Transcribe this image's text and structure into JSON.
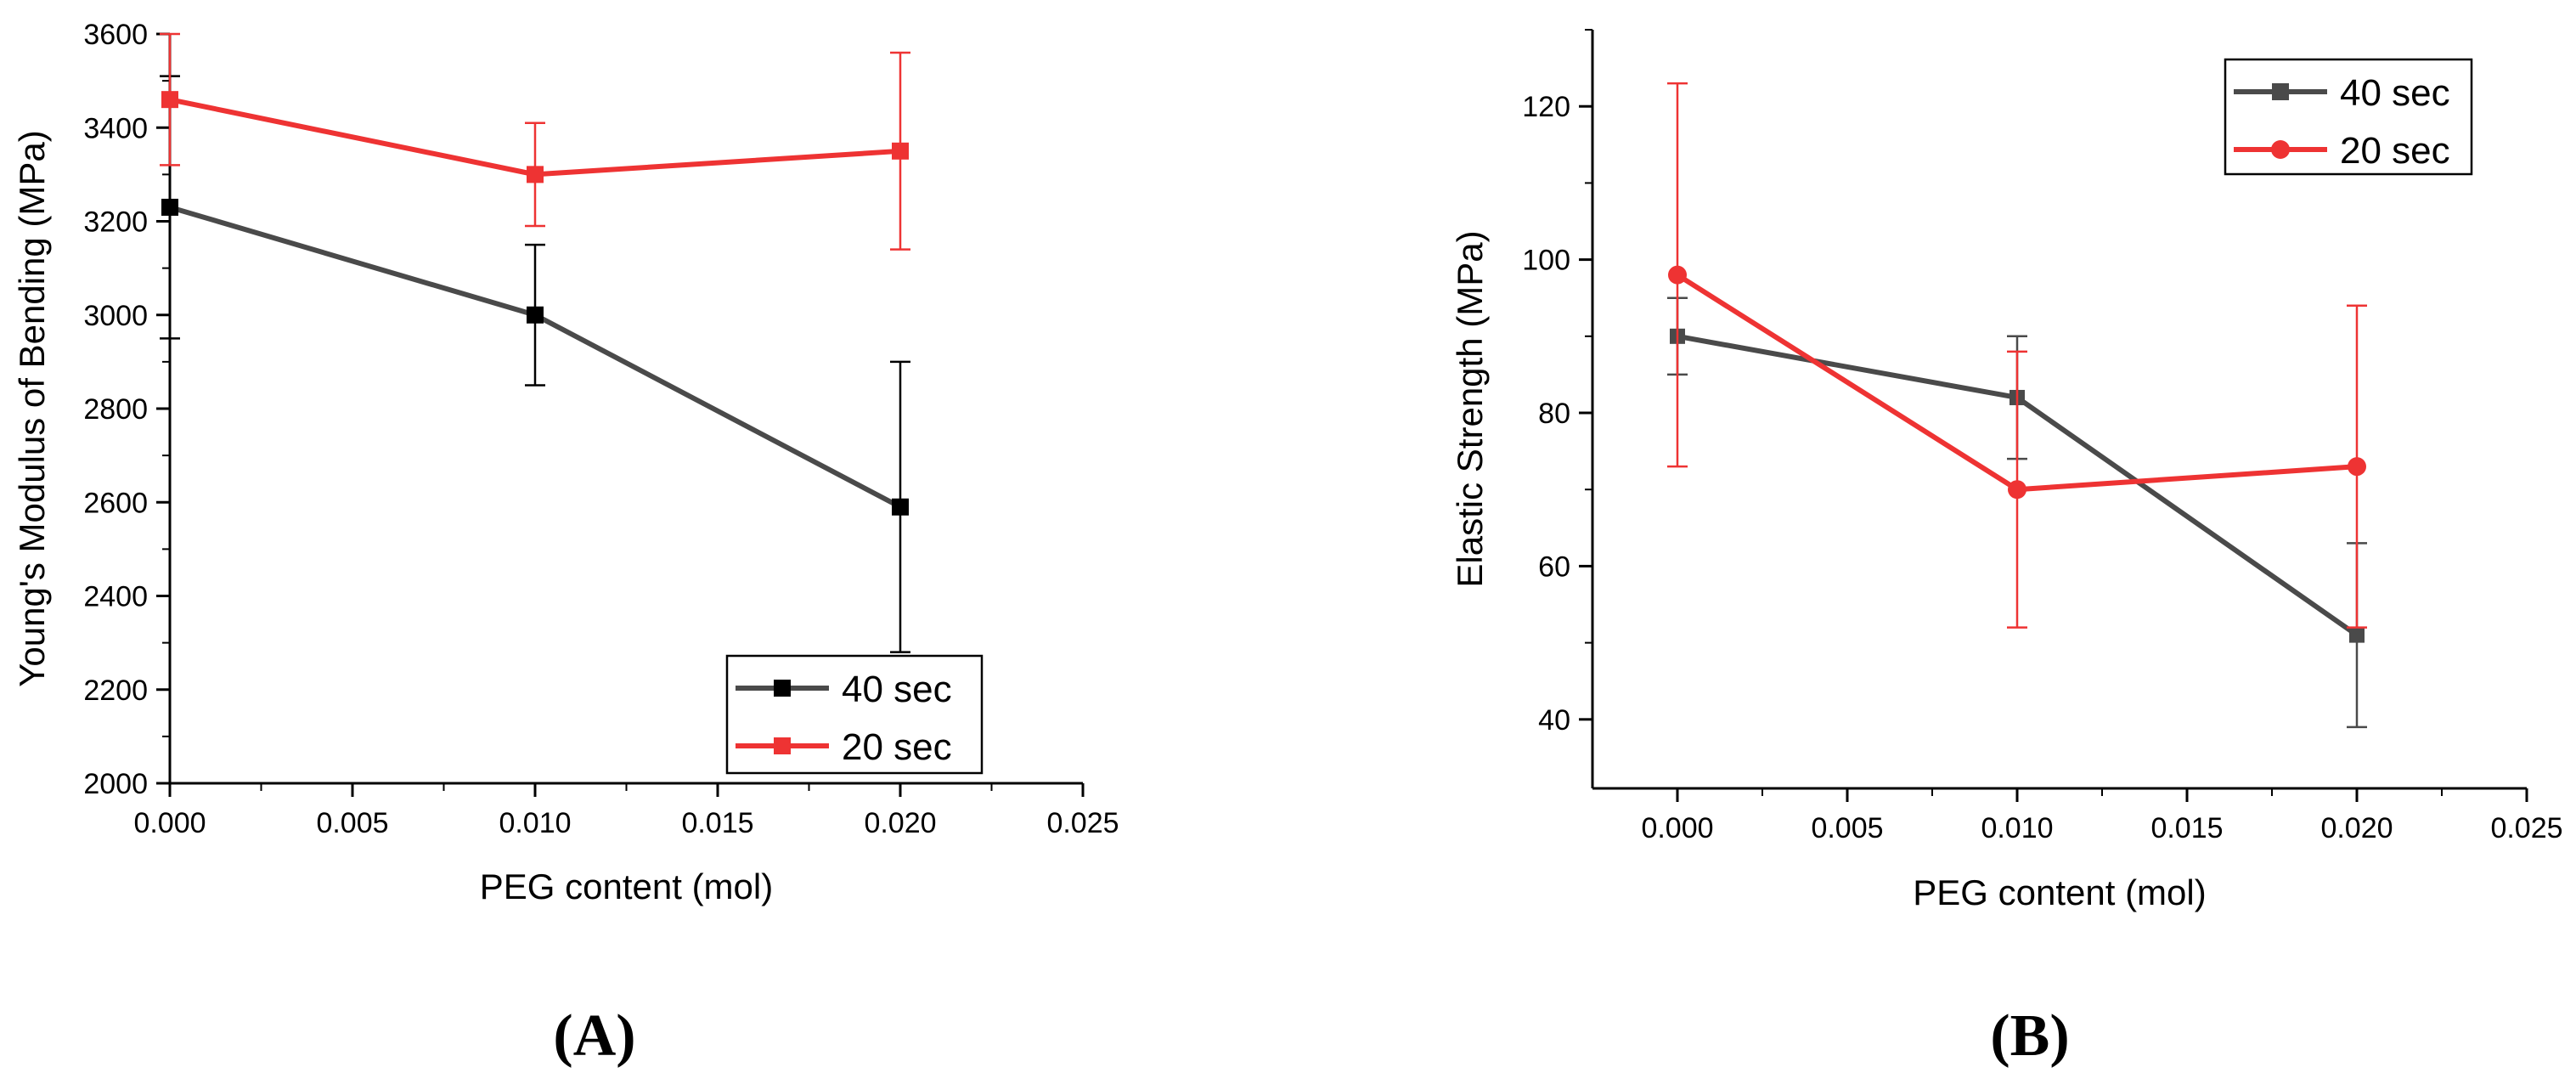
{
  "colors": {
    "series_40": "#4a4a4a",
    "series_40_marker_a": "#000000",
    "series_20": "#ee3333",
    "axis": "#000000",
    "background": "#ffffff"
  },
  "chart_data": [
    {
      "panel": "(A)",
      "type": "line",
      "xlabel": "PEG content (mol)",
      "ylabel": "Young's Modulus of  Bending (MPa)",
      "xlim": [
        0,
        0.025
      ],
      "ylim": [
        2000,
        3600
      ],
      "xticks": [
        0.0,
        0.005,
        0.01,
        0.015,
        0.02,
        0.025
      ],
      "xtick_labels": [
        "0.000",
        "0.005",
        "0.010",
        "0.015",
        "0.020",
        "0.025"
      ],
      "yticks": [
        2000,
        2200,
        2400,
        2600,
        2800,
        3000,
        3200,
        3400,
        3600
      ],
      "ytick_labels": [
        "2000",
        "2200",
        "2400",
        "2600",
        "2800",
        "3000",
        "3200",
        "3400",
        "3600"
      ],
      "legend_position": "bottom-right",
      "series": [
        {
          "name": "40 sec",
          "marker": "square",
          "x": [
            0.0,
            0.01,
            0.02
          ],
          "y": [
            3230,
            3000,
            2590
          ],
          "err_low": [
            2950,
            2850,
            2280
          ],
          "err_high": [
            3510,
            3150,
            2900
          ]
        },
        {
          "name": "20 sec",
          "marker": "square",
          "x": [
            0.0,
            0.01,
            0.02
          ],
          "y": [
            3460,
            3300,
            3350
          ],
          "err_low": [
            3320,
            3190,
            3140
          ],
          "err_high": [
            3600,
            3410,
            3560
          ]
        }
      ]
    },
    {
      "panel": "(B)",
      "type": "line",
      "xlabel": "PEG content (mol)",
      "ylabel": "Elastic Strength (MPa)",
      "xlim": [
        -0.0025,
        0.025
      ],
      "ylim": [
        31,
        130
      ],
      "xticks": [
        0.0,
        0.005,
        0.01,
        0.015,
        0.02,
        0.025
      ],
      "xtick_labels": [
        "0.000",
        "0.005",
        "0.010",
        "0.015",
        "0.020",
        "0.025"
      ],
      "yticks": [
        40,
        60,
        80,
        100,
        120
      ],
      "ytick_labels": [
        "40",
        "60",
        "80",
        "100",
        "120"
      ],
      "legend_position": "top-right",
      "series": [
        {
          "name": "40 sec",
          "marker": "square",
          "x": [
            0.0,
            0.01,
            0.02
          ],
          "y": [
            90,
            82,
            51
          ],
          "err_low": [
            85,
            74,
            39
          ],
          "err_high": [
            95,
            90,
            63
          ]
        },
        {
          "name": "20 sec",
          "marker": "circle",
          "x": [
            0.0,
            0.01,
            0.02
          ],
          "y": [
            98,
            70,
            73
          ],
          "err_low": [
            73,
            52,
            52
          ],
          "err_high": [
            123,
            88,
            94
          ]
        }
      ]
    }
  ]
}
